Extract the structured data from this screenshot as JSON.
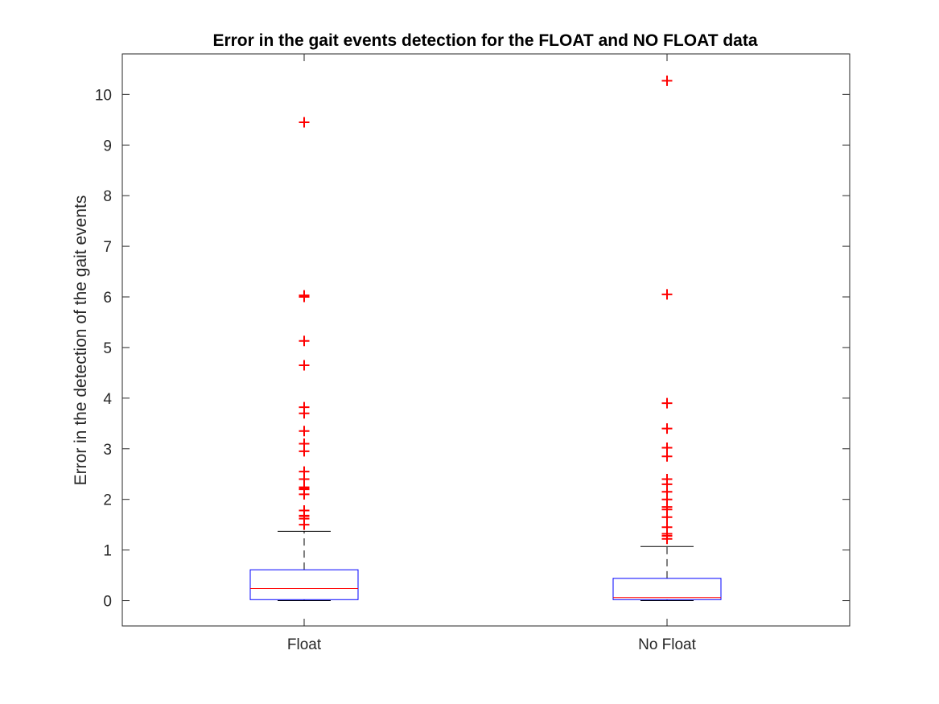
{
  "chart_data": {
    "type": "boxplot",
    "title": "Error in the gait events detection for the FLOAT and NO FLOAT data",
    "xlabel": "",
    "ylabel": "Error in the detection of the gait events",
    "ylim": [
      -0.5,
      10.8
    ],
    "yticks": [
      0,
      1,
      2,
      3,
      4,
      5,
      6,
      7,
      8,
      9,
      10
    ],
    "categories": [
      "Float",
      "No Float"
    ],
    "grid": false,
    "legend": "none",
    "colors": {
      "box": "#0000ff",
      "median": "#ff0000",
      "outlier": "#ff0000",
      "whisker": "#000000",
      "axes": "#262626"
    },
    "boxes": [
      {
        "category": "Float",
        "whisker_low": 0.0,
        "q1": 0.02,
        "median": 0.24,
        "q3": 0.61,
        "whisker_high": 1.37,
        "outliers": [
          1.5,
          1.62,
          1.67,
          1.68,
          1.78,
          2.1,
          2.2,
          2.22,
          2.24,
          2.4,
          2.55,
          2.95,
          3.1,
          3.35,
          3.7,
          3.82,
          4.65,
          5.13,
          6.0,
          6.03,
          9.45
        ]
      },
      {
        "category": "No Float",
        "whisker_low": 0.0,
        "q1": 0.02,
        "median": 0.06,
        "q3": 0.44,
        "whisker_high": 1.07,
        "outliers": [
          1.22,
          1.28,
          1.32,
          1.45,
          1.65,
          1.8,
          1.85,
          2.0,
          2.15,
          2.3,
          2.4,
          2.85,
          3.02,
          3.4,
          3.9,
          6.05,
          10.27
        ]
      }
    ]
  }
}
